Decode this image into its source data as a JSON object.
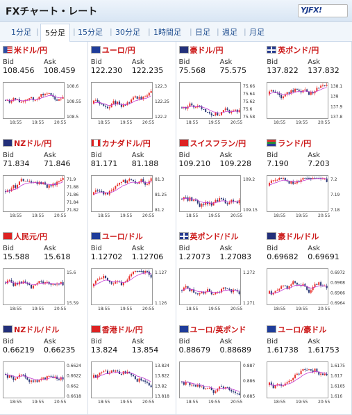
{
  "header": {
    "title": "FXチャート・レート",
    "logo_text": "YJFX!"
  },
  "tabs": [
    {
      "label": "1分足",
      "active": false
    },
    {
      "label": "5分足",
      "active": true
    },
    {
      "label": "15分足",
      "active": false
    },
    {
      "label": "30分足",
      "active": false
    },
    {
      "label": "1時間足",
      "active": false
    },
    {
      "label": "日足",
      "active": false
    },
    {
      "label": "週足",
      "active": false
    },
    {
      "label": "月足",
      "active": false
    }
  ],
  "labels": {
    "bid": "Bid",
    "ask": "Ask"
  },
  "time_labels": [
    "18:55",
    "19:55",
    "20:55"
  ],
  "pairs": [
    {
      "name": "米ドル/円",
      "bid": "108.456",
      "ask": "108.459",
      "y_ticks": [
        "108.6",
        "108.55",
        "108.5"
      ],
      "flag": "us"
    },
    {
      "name": "ユーロ/円",
      "bid": "122.230",
      "ask": "122.235",
      "y_ticks": [
        "122.3",
        "122.25",
        "122.2"
      ],
      "flag": "eu"
    },
    {
      "name": "豪ドル/円",
      "bid": "75.568",
      "ask": "75.575",
      "y_ticks": [
        "75.66",
        "75.64",
        "75.62",
        "75.6",
        "75.58"
      ],
      "flag": "au"
    },
    {
      "name": "英ポンド/円",
      "bid": "137.822",
      "ask": "137.832",
      "y_ticks": [
        "138.1",
        "138",
        "137.9",
        "137.8"
      ],
      "flag": "gb"
    },
    {
      "name": "NZドル/円",
      "bid": "71.834",
      "ask": "71.846",
      "y_ticks": [
        "71.9",
        "71.88",
        "71.86",
        "71.84",
        "71.82"
      ],
      "flag": "nz"
    },
    {
      "name": "カナダドル/円",
      "bid": "81.171",
      "ask": "81.188",
      "y_ticks": [
        "81.3",
        "81.25",
        "81.2"
      ],
      "flag": "ca"
    },
    {
      "name": "スイスフラン/円",
      "bid": "109.210",
      "ask": "109.228",
      "y_ticks": [
        "109.2",
        "109.15"
      ],
      "flag": "ch"
    },
    {
      "name": "ランド/円",
      "bid": "7.190",
      "ask": "7.203",
      "y_ticks": [
        "7.2",
        "7.19",
        "7.18"
      ],
      "flag": "za"
    },
    {
      "name": "人民元/円",
      "bid": "15.588",
      "ask": "15.618",
      "y_ticks": [
        "15.6",
        "15.59"
      ],
      "flag": "cn"
    },
    {
      "name": "ユーロ/ドル",
      "bid": "1.12702",
      "ask": "1.12706",
      "y_ticks": [
        "1.127",
        "1.126"
      ],
      "flag": "eu"
    },
    {
      "name": "英ポンド/ドル",
      "bid": "1.27073",
      "ask": "1.27083",
      "y_ticks": [
        "1.272",
        "1.271"
      ],
      "flag": "gb"
    },
    {
      "name": "豪ドル/ドル",
      "bid": "0.69682",
      "ask": "0.69691",
      "y_ticks": [
        "0.6972",
        "0.6968",
        "0.6966",
        "0.6964"
      ],
      "flag": "au"
    },
    {
      "name": "NZドル/ドル",
      "bid": "0.66219",
      "ask": "0.66235",
      "y_ticks": [
        "0.6624",
        "0.6622",
        "0.662",
        "0.6618"
      ],
      "flag": "nz"
    },
    {
      "name": "香港ドル/円",
      "bid": "13.824",
      "ask": "13.854",
      "y_ticks": [
        "13.824",
        "13.822",
        "13.82",
        "13.818"
      ],
      "flag": "hk"
    },
    {
      "name": "ユーロ/英ポンド",
      "bid": "0.88679",
      "ask": "0.88689",
      "y_ticks": [
        "0.887",
        "0.886",
        "0.885"
      ],
      "flag": "eu"
    },
    {
      "name": "ユーロ/豪ドル",
      "bid": "1.61738",
      "ask": "1.61753",
      "y_ticks": [
        "1.6175",
        "1.617",
        "1.6165",
        "1.616"
      ],
      "flag": "eu"
    }
  ],
  "colors": {
    "up": "#e8312c",
    "down": "#2b3a78",
    "ma": "#c33ad1",
    "title": "#cc1a1a"
  }
}
